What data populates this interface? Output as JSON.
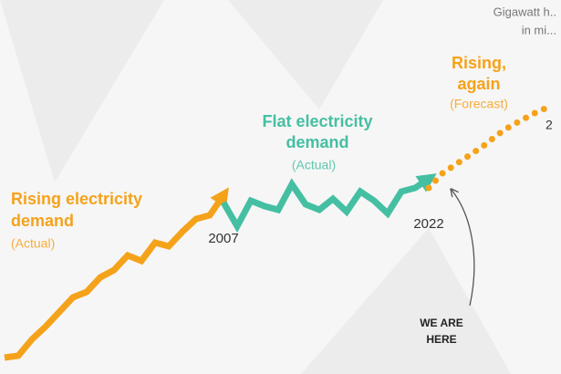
{
  "chart_data": {
    "type": "line",
    "unit_lines": [
      "Gigawatt h..",
      "in mi..."
    ],
    "categories": [
      null,
      null,
      null,
      null,
      null,
      null,
      null,
      null,
      null,
      null,
      null,
      null,
      null,
      null,
      null,
      null,
      "2007",
      null,
      null,
      null,
      null,
      null,
      null,
      null,
      null,
      null,
      null,
      null,
      null,
      null,
      null,
      "2022",
      null,
      null,
      null,
      null,
      null,
      null,
      null,
      null,
      null
    ],
    "ylim": [
      2.5,
      4.55
    ],
    "series": [
      {
        "color": "#f5a21b",
        "style": "solid",
        "arrow": true,
        "values": [
          2.59,
          2.6,
          2.69,
          2.76,
          2.84,
          2.92,
          2.95,
          3.03,
          3.07,
          3.15,
          3.12,
          3.22,
          3.2,
          3.28,
          3.35,
          3.37,
          3.48,
          null,
          null,
          null,
          null,
          null,
          null,
          null,
          null,
          null,
          null,
          null,
          null,
          null,
          null,
          null,
          null,
          null,
          null,
          null,
          null,
          null,
          null,
          null,
          null
        ]
      },
      {
        "color": "#45bfa2",
        "style": "solid",
        "arrow": true,
        "values": [
          null,
          null,
          null,
          null,
          null,
          null,
          null,
          null,
          null,
          null,
          null,
          null,
          null,
          null,
          null,
          null,
          3.44,
          3.31,
          3.45,
          3.42,
          3.4,
          3.54,
          3.43,
          3.4,
          3.46,
          3.39,
          3.5,
          3.45,
          3.38,
          3.5,
          3.52,
          3.57,
          null,
          null,
          null,
          null,
          null,
          null,
          null,
          null,
          null
        ]
      },
      {
        "color": "#f5a21b",
        "style": "dotted",
        "arrow": false,
        "values": [
          null,
          null,
          null,
          null,
          null,
          null,
          null,
          null,
          null,
          null,
          null,
          null,
          null,
          null,
          null,
          null,
          null,
          null,
          null,
          null,
          null,
          null,
          null,
          null,
          null,
          null,
          null,
          null,
          null,
          null,
          null,
          3.52,
          3.6,
          3.65,
          3.7,
          3.75,
          3.81,
          3.86,
          3.9,
          3.94,
          3.97
        ]
      }
    ],
    "annotations": [
      {
        "lines": [
          "Rising electricity",
          "demand"
        ],
        "note": "(Actual)",
        "color": "#f5a21b"
      },
      {
        "lines": [
          "Flat electricity",
          "demand"
        ],
        "note": "(Actual)",
        "color": "#45bfa2"
      },
      {
        "lines": [
          "Rising,",
          "again"
        ],
        "note": "(Forecast)",
        "color": "#f5a21b"
      }
    ],
    "edge_label": "2",
    "callout": [
      "WE ARE",
      "HERE"
    ]
  }
}
